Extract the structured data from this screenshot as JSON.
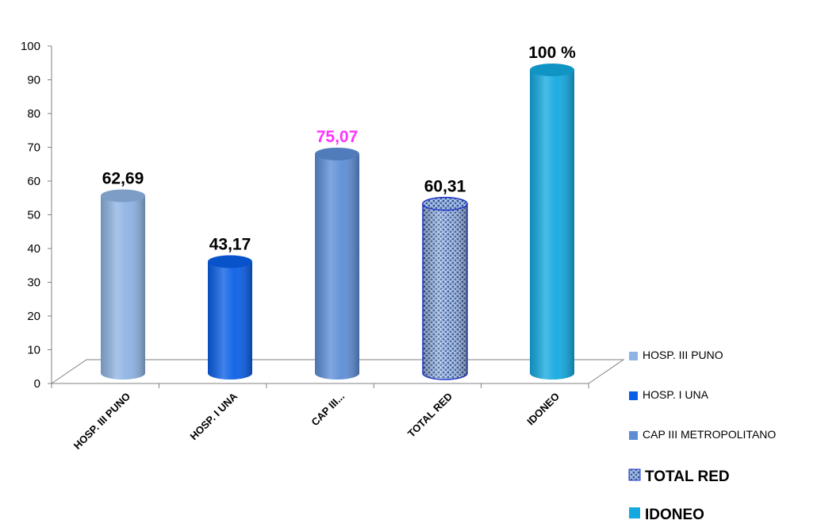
{
  "chart_data": {
    "type": "bar",
    "title": "",
    "xlabel": "",
    "ylabel": "",
    "ylim": [
      0,
      100
    ],
    "yticks": [
      0,
      10,
      20,
      30,
      40,
      50,
      60,
      70,
      80,
      90,
      100
    ],
    "categories": [
      "HOSP. III PUNO",
      "HOSP. I UNA",
      "CAP III...",
      "TOTAL RED",
      "IDONEO"
    ],
    "values": [
      62.69,
      43.17,
      75.07,
      60.31,
      100
    ],
    "data_labels": [
      "62,69",
      "43,17",
      "75,07",
      "60,31",
      "100 %"
    ],
    "label_colors": [
      "#000000",
      "#000000",
      "#ff33ff",
      "#000000",
      "#000000"
    ],
    "colors": [
      "#8fb3e3",
      "#0a5fe6",
      "#5d8ed6",
      "#7d9bd1",
      "#13a9e0"
    ],
    "legend": {
      "position": "right",
      "entries": [
        "HOSP. III PUNO",
        "HOSP. I UNA",
        "CAP III METROPOLITANO",
        "TOTAL RED",
        "IDONEO"
      ]
    },
    "grid": false
  }
}
